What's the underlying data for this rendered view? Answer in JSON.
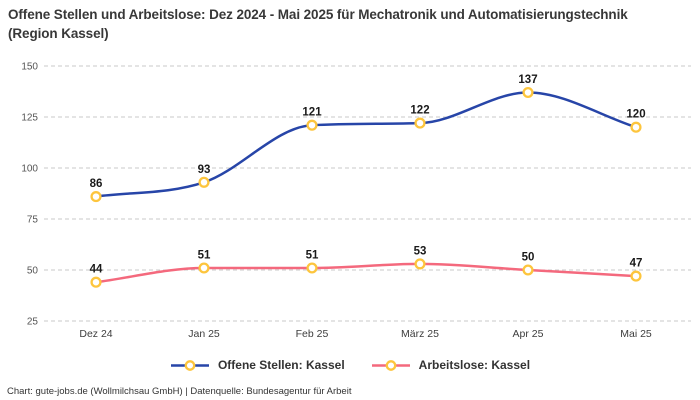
{
  "title": "Offene Stellen und Arbeitslose: Dez 2024 - Mai 2025 für Mechatronik und Automatisierungstechnik (Region Kassel)",
  "footer": "Chart: gute-jobs.de (Wollmilchsau GmbH) | Datenquelle: Bundesagentur für Arbeit",
  "colors": {
    "series_open_positions": "#2745a8",
    "series_unemployed": "#f4697d",
    "marker_ring": "#fdc53d",
    "marker_fill": "#ffffff",
    "gridline": "#c9c9c9",
    "y_tick_text": "#555555",
    "x_tick_text": "#3d3d3d",
    "data_label_text": "#1a1a1a",
    "title_text": "#383838"
  },
  "chart_data": {
    "type": "line",
    "title": "Offene Stellen und Arbeitslose: Dez 2024 - Mai 2025 für Mechatronik und Automatisierungstechnik (Region Kassel)",
    "categories": [
      "Dez 24",
      "Jan 25",
      "Feb 25",
      "März 25",
      "Apr 25",
      "Mai 25"
    ],
    "series": [
      {
        "name": "Offene Stellen: Kassel",
        "values": [
          86,
          93,
          121,
          122,
          137,
          120
        ],
        "color": "#2745a8"
      },
      {
        "name": "Arbeitslose: Kassel",
        "values": [
          44,
          51,
          51,
          53,
          50,
          47
        ],
        "color": "#f4697d"
      }
    ],
    "yticks": [
      25,
      50,
      75,
      100,
      125,
      150
    ],
    "ylim": [
      25,
      150
    ],
    "xlabel": "",
    "ylabel": "",
    "grid": "horizontal-dashed",
    "curve": "monotone",
    "data_labels": true,
    "marker": {
      "shape": "circle",
      "fill": "#ffffff",
      "stroke": "#fdc53d"
    },
    "legend_position": "bottom"
  }
}
